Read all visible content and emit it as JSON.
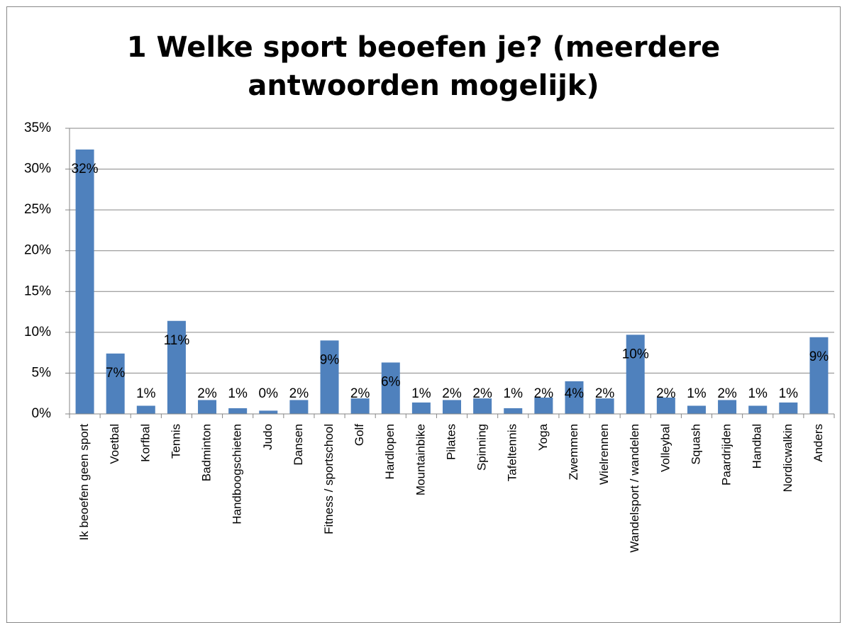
{
  "chart_data": {
    "type": "bar",
    "title": "1 Welke sport beoefen je? (meerdere antwoorden mogelijk)",
    "categories": [
      "Ik beoefen geen sport",
      "Voetbal",
      "Korfbal",
      "Tennis",
      "Badminton",
      "Handboogschieten",
      "Judo",
      "Dansen",
      "Fitness / sportschool",
      "Golf",
      "Hardlopen",
      "Mountainbike",
      "Pilates",
      "Spinning",
      "Tafeltennis",
      "Yoga",
      "Zwemmen",
      "Wielrennen",
      "Wandelsport / wandelen",
      "Volleybal",
      "Squash",
      "Paardrijden",
      "Handbal",
      "Nordicwalkin",
      "Anders"
    ],
    "values": [
      32.4,
      7.4,
      1.0,
      11.4,
      1.7,
      0.7,
      0.4,
      1.7,
      9.0,
      1.9,
      6.3,
      1.4,
      1.7,
      1.9,
      0.7,
      2.0,
      4.0,
      1.9,
      9.7,
      2.0,
      1.0,
      1.7,
      1.0,
      1.4,
      9.4
    ],
    "value_labels": [
      "32%",
      "7%",
      "1%",
      "11%",
      "2%",
      "1%",
      "0%",
      "2%",
      "9%",
      "2%",
      "6%",
      "1%",
      "2%",
      "2%",
      "1%",
      "2%",
      "4%",
      "2%",
      "10%",
      "2%",
      "1%",
      "2%",
      "1%",
      "1%",
      "9%"
    ],
    "color": "#4f81bd",
    "ylim": [
      0,
      35
    ],
    "yticks": [
      {
        "value": 0,
        "label": "0%"
      },
      {
        "value": 5,
        "label": "5%"
      },
      {
        "value": 10,
        "label": "10%"
      },
      {
        "value": 15,
        "label": "15%"
      },
      {
        "value": 20,
        "label": "20%"
      },
      {
        "value": 25,
        "label": "25%"
      },
      {
        "value": 30,
        "label": "30%"
      },
      {
        "value": 35,
        "label": "35%"
      }
    ],
    "grid": true
  }
}
